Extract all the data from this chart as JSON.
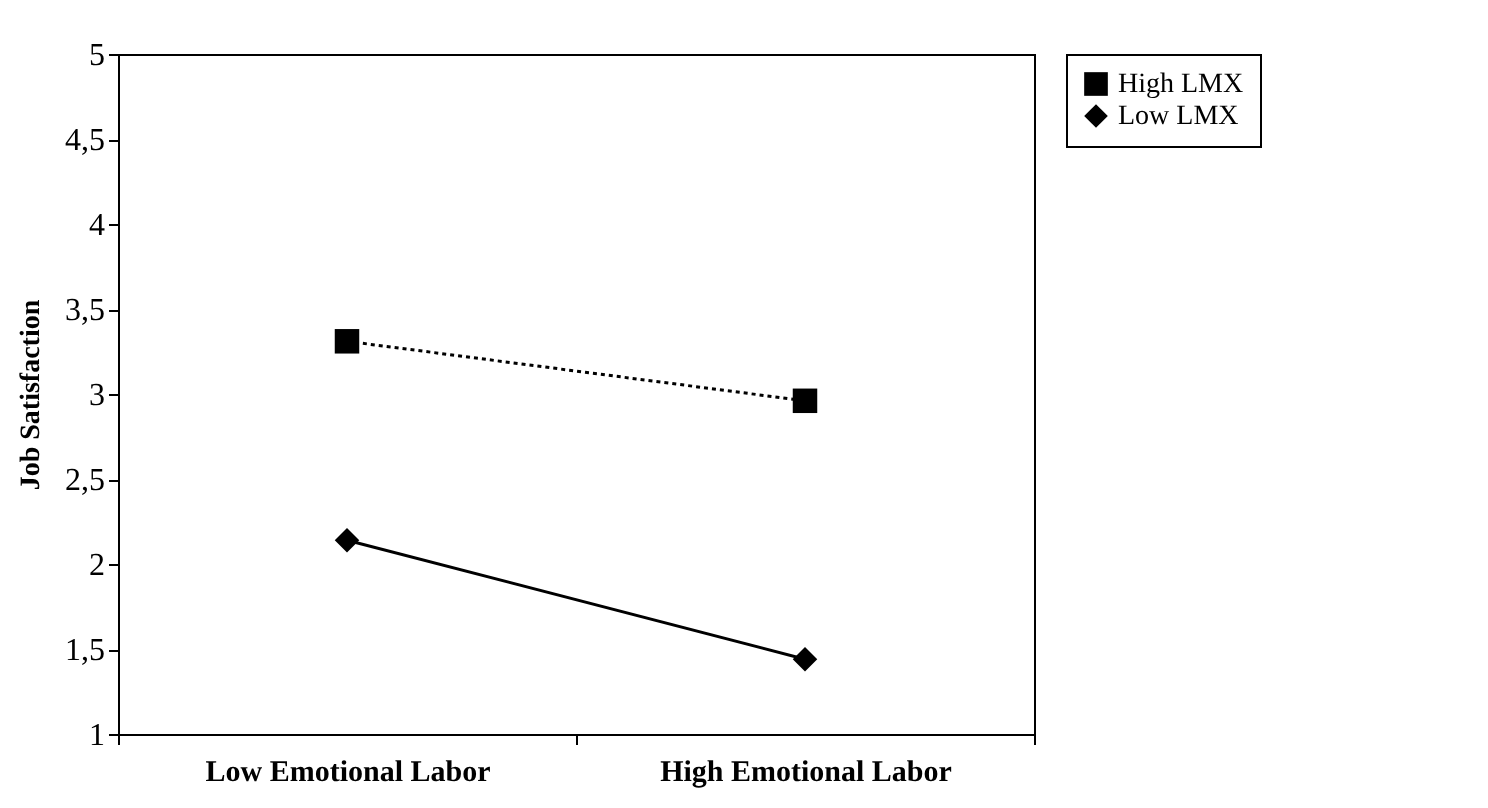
{
  "chart_data": {
    "type": "line",
    "ylabel": "Job Satisfaction",
    "categories": [
      "Low Emotional Labor",
      "High Emotional Labor"
    ],
    "series": [
      {
        "name": "High LMX",
        "color": "#000000",
        "marker": "square",
        "line_style": "dotted",
        "values": [
          3.31,
          2.96
        ]
      },
      {
        "name": "Low LMX",
        "color": "#000000",
        "marker": "diamond",
        "line_style": "solid",
        "values": [
          2.14,
          1.44
        ]
      }
    ],
    "ylim": [
      1,
      5
    ],
    "yticks": [
      1,
      {
        "value": 1.5,
        "label": "1,5"
      },
      2,
      {
        "value": 2.5,
        "label": "2,5"
      },
      3,
      {
        "value": 3.5,
        "label": "3,5"
      },
      4,
      {
        "value": 4.5,
        "label": "4,5"
      },
      5
    ],
    "grid": false,
    "legend": "right"
  }
}
